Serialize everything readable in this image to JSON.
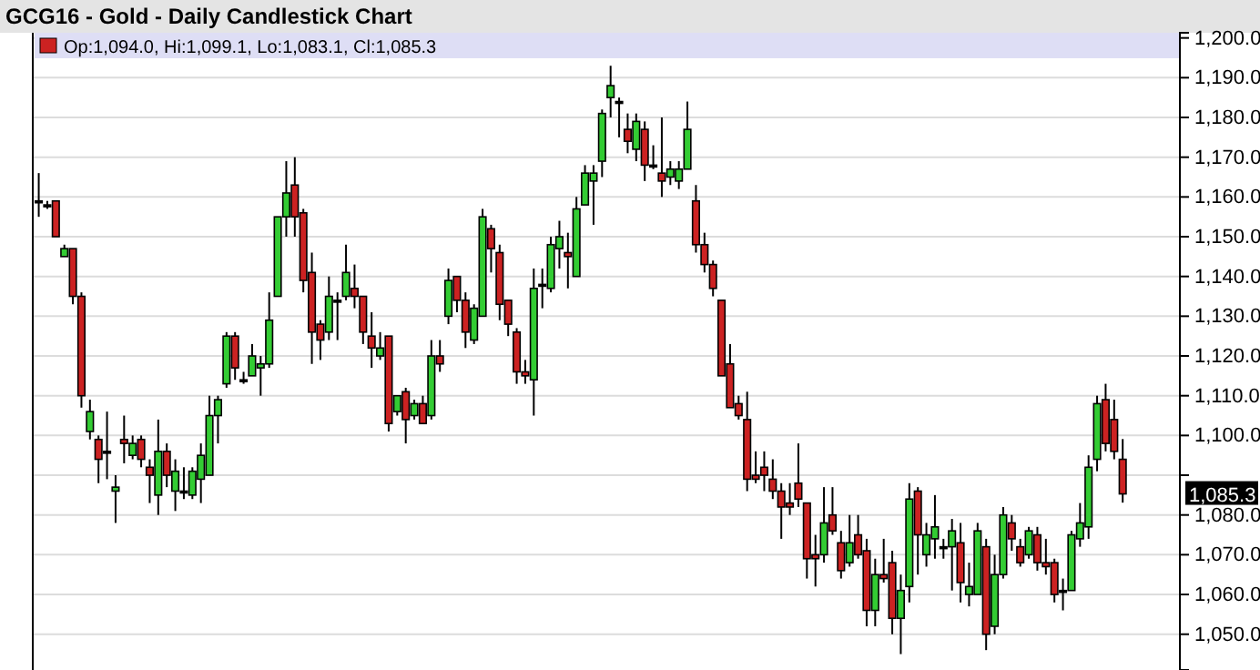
{
  "chart_data": {
    "type": "candlestick",
    "title": "GCG16 - Gold - Daily Candlestick Chart",
    "annotations": [
      "Op:1,094.0, Hi:1,099.1, Lo:1,083.1, Cl:1,085.3",
      "1,085.3"
    ],
    "categories": [
      null,
      null,
      null,
      null,
      null,
      null,
      null,
      null,
      null,
      null,
      null,
      null,
      null,
      null,
      null,
      null,
      null,
      null,
      null,
      null,
      null,
      null,
      null,
      null,
      null,
      null,
      null,
      null,
      null,
      null,
      null,
      null,
      null,
      null,
      null,
      null,
      null,
      null,
      null,
      null,
      null,
      null,
      null,
      null,
      null,
      null,
      null,
      null,
      null,
      null,
      null,
      null,
      null,
      null,
      null,
      null,
      null,
      null,
      null,
      null,
      null,
      null,
      null,
      null,
      null,
      null,
      null,
      null,
      null,
      null,
      null,
      null,
      null,
      null,
      null,
      null,
      null,
      null,
      null,
      null,
      null,
      null,
      null,
      null,
      null,
      null,
      null,
      null,
      null,
      null,
      null,
      null,
      null,
      null,
      null,
      null,
      null,
      null,
      null,
      null,
      null,
      null,
      null,
      null,
      null,
      null,
      null,
      null,
      null,
      null,
      null,
      null,
      null,
      null,
      null,
      null,
      null,
      null,
      null,
      null,
      null,
      null,
      null,
      null,
      null,
      null,
      null,
      null
    ],
    "ohlc": [
      [
        1159,
        1166,
        1155,
        1159
      ],
      [
        1158,
        1159,
        1157,
        1158
      ],
      [
        1159,
        1159,
        1150,
        1150
      ],
      [
        1145,
        1148,
        1145,
        1147
      ],
      [
        1147,
        1147,
        1133,
        1135
      ],
      [
        1135,
        1136,
        1107,
        1110
      ],
      [
        1101,
        1109,
        1099,
        1106
      ],
      [
        1099,
        1100,
        1088,
        1094
      ],
      [
        1096,
        1106,
        1089,
        1096
      ],
      [
        1086,
        1090,
        1078,
        1087
      ],
      [
        1099,
        1105,
        1093,
        1098
      ],
      [
        1095,
        1100,
        1094,
        1098
      ],
      [
        1099,
        1100,
        1092,
        1094
      ],
      [
        1092,
        1094,
        1083,
        1090
      ],
      [
        1085,
        1104,
        1080,
        1096
      ],
      [
        1096,
        1098,
        1087,
        1090
      ],
      [
        1086,
        1094,
        1081,
        1091
      ],
      [
        1086,
        1092,
        1084,
        1086
      ],
      [
        1085,
        1092,
        1084,
        1091
      ],
      [
        1089,
        1098,
        1083,
        1095
      ],
      [
        1090,
        1110,
        1090,
        1105
      ],
      [
        1105,
        1110,
        1098,
        1109
      ],
      [
        1113,
        1126,
        1112,
        1125
      ],
      [
        1125,
        1126,
        1114,
        1117
      ],
      [
        1114,
        1116,
        1113,
        1114
      ],
      [
        1115,
        1123,
        1115,
        1120
      ],
      [
        1117,
        1120,
        1110,
        1118
      ],
      [
        1118,
        1136,
        1117,
        1129
      ],
      [
        1135,
        1155,
        1135,
        1155
      ],
      [
        1155,
        1169,
        1150,
        1161
      ],
      [
        1163,
        1170,
        1150,
        1155
      ],
      [
        1156,
        1157,
        1136,
        1139
      ],
      [
        1141,
        1146,
        1118,
        1126
      ],
      [
        1128,
        1129,
        1119,
        1124
      ],
      [
        1126,
        1140,
        1124,
        1135
      ],
      [
        1134,
        1136,
        1124,
        1134
      ],
      [
        1135,
        1148,
        1134,
        1141
      ],
      [
        1137,
        1143,
        1132,
        1135
      ],
      [
        1135,
        1135,
        1123,
        1126
      ],
      [
        1125,
        1131,
        1117,
        1122
      ],
      [
        1120,
        1126,
        1119,
        1122
      ],
      [
        1125,
        1125,
        1101,
        1103
      ],
      [
        1106,
        1110,
        1105,
        1110
      ],
      [
        1111,
        1112,
        1098,
        1104
      ],
      [
        1105,
        1109,
        1104,
        1108
      ],
      [
        1108,
        1110,
        1103,
        1103
      ],
      [
        1105,
        1124,
        1104,
        1120
      ],
      [
        1120,
        1124,
        1116,
        1118
      ],
      [
        1130,
        1142,
        1128,
        1139
      ],
      [
        1140,
        1140,
        1131,
        1134
      ],
      [
        1134,
        1136,
        1122,
        1126
      ],
      [
        1124,
        1133,
        1123,
        1132
      ],
      [
        1130,
        1157,
        1130,
        1155
      ],
      [
        1152,
        1153,
        1141,
        1147
      ],
      [
        1146,
        1148,
        1129,
        1133
      ],
      [
        1134,
        1134,
        1125,
        1128
      ],
      [
        1126,
        1127,
        1113,
        1116
      ],
      [
        1116,
        1119,
        1113,
        1115
      ],
      [
        1114,
        1142,
        1105,
        1137
      ],
      [
        1138,
        1142,
        1132,
        1138
      ],
      [
        1137,
        1150,
        1136,
        1148
      ],
      [
        1147,
        1154,
        1142,
        1150
      ],
      [
        1146,
        1151,
        1137,
        1145
      ],
      [
        1140,
        1160,
        1140,
        1157
      ],
      [
        1158,
        1168,
        1158,
        1166
      ],
      [
        1164,
        1168,
        1153,
        1166
      ],
      [
        1169,
        1182,
        1165,
        1181
      ],
      [
        1185,
        1193,
        1180,
        1188
      ],
      [
        1184,
        1185,
        1175,
        1184
      ],
      [
        1177,
        1181,
        1171,
        1174
      ],
      [
        1172,
        1181,
        1169,
        1179
      ],
      [
        1177,
        1179,
        1164,
        1168
      ],
      [
        1168,
        1173,
        1167,
        1168
      ],
      [
        1166,
        1180,
        1160,
        1164
      ],
      [
        1165,
        1169,
        1163,
        1167
      ],
      [
        1164,
        1169,
        1162,
        1167
      ],
      [
        1167,
        1184,
        1167,
        1177
      ],
      [
        1159,
        1163,
        1146,
        1148
      ],
      [
        1148,
        1151,
        1141,
        1143
      ],
      [
        1143,
        1144,
        1135,
        1137
      ],
      [
        1134,
        1134,
        1115,
        1115
      ],
      [
        1118,
        1123,
        1107,
        1107
      ],
      [
        1108,
        1110,
        1104,
        1105
      ],
      [
        1104,
        1111,
        1086,
        1089
      ],
      [
        1090,
        1096,
        1088,
        1089
      ],
      [
        1092,
        1096,
        1086,
        1090
      ],
      [
        1089,
        1094,
        1084,
        1086
      ],
      [
        1086,
        1088,
        1074,
        1082
      ],
      [
        1083,
        1088,
        1080,
        1082
      ],
      [
        1088,
        1098,
        1082,
        1084
      ],
      [
        1083,
        1083,
        1064,
        1069
      ],
      [
        1070,
        1075,
        1062,
        1069
      ],
      [
        1070,
        1087,
        1068,
        1078
      ],
      [
        1080,
        1087,
        1075,
        1076
      ],
      [
        1073,
        1076,
        1064,
        1066
      ],
      [
        1068,
        1080,
        1067,
        1073
      ],
      [
        1075,
        1080,
        1069,
        1070
      ],
      [
        1071,
        1074,
        1052,
        1056
      ],
      [
        1056,
        1069,
        1052,
        1065
      ],
      [
        1065,
        1074,
        1063,
        1064
      ],
      [
        1068,
        1071,
        1050,
        1054
      ],
      [
        1054,
        1065,
        1045,
        1061
      ],
      [
        1062,
        1088,
        1058,
        1084
      ],
      [
        1086,
        1087,
        1065,
        1075
      ],
      [
        1070,
        1078,
        1067,
        1075
      ],
      [
        1074,
        1085,
        1069,
        1077
      ],
      [
        1072,
        1074,
        1069,
        1072
      ],
      [
        1072,
        1079,
        1061,
        1076
      ],
      [
        1073,
        1078,
        1058,
        1063
      ],
      [
        1060,
        1068,
        1057,
        1062
      ],
      [
        1060,
        1078,
        1060,
        1076
      ],
      [
        1072,
        1074,
        1046,
        1050
      ],
      [
        1052,
        1070,
        1050,
        1065
      ],
      [
        1065,
        1082,
        1064,
        1080
      ],
      [
        1078,
        1080,
        1071,
        1074
      ],
      [
        1072,
        1074,
        1067,
        1068
      ],
      [
        1070,
        1077,
        1069,
        1076
      ],
      [
        1075,
        1077,
        1066,
        1068
      ],
      [
        1068,
        1074,
        1065,
        1067
      ],
      [
        1068,
        1069,
        1058,
        1060
      ],
      [
        1061,
        1064,
        1056,
        1061
      ],
      [
        1061,
        1076,
        1061,
        1075
      ],
      [
        1074,
        1083,
        1072,
        1078
      ],
      [
        1077,
        1095,
        1074,
        1092
      ],
      [
        1094,
        1110,
        1091,
        1108
      ],
      [
        1109,
        1113,
        1096,
        1098
      ],
      [
        1104,
        1109,
        1094,
        1096
      ],
      [
        1094.0,
        1099.1,
        1083.1,
        1085.3
      ]
    ],
    "colors": [
      "#000000",
      "#000000",
      "#cc2222",
      "#33cc33",
      "#cc2222",
      "#cc2222",
      "#33cc33",
      "#cc2222",
      "#000000",
      "#33cc33",
      "#cc2222",
      "#33cc33",
      "#cc2222",
      "#cc2222",
      "#33cc33",
      "#cc2222",
      "#33cc33",
      "#000000",
      "#33cc33",
      "#33cc33",
      "#33cc33",
      "#33cc33",
      "#33cc33",
      "#cc2222",
      "#000000",
      "#33cc33",
      "#33cc33",
      "#33cc33",
      "#33cc33",
      "#33cc33",
      "#cc2222",
      "#cc2222",
      "#cc2222",
      "#cc2222",
      "#33cc33",
      "#000000",
      "#33cc33",
      "#cc2222",
      "#cc2222",
      "#cc2222",
      "#33cc33",
      "#cc2222",
      "#33cc33",
      "#cc2222",
      "#33cc33",
      "#cc2222",
      "#33cc33",
      "#cc2222",
      "#33cc33",
      "#cc2222",
      "#cc2222",
      "#33cc33",
      "#33cc33",
      "#cc2222",
      "#cc2222",
      "#cc2222",
      "#cc2222",
      "#cc2222",
      "#33cc33",
      "#000000",
      "#33cc33",
      "#33cc33",
      "#cc2222",
      "#33cc33",
      "#33cc33",
      "#33cc33",
      "#33cc33",
      "#33cc33",
      "#000000",
      "#cc2222",
      "#33cc33",
      "#cc2222",
      "#000000",
      "#cc2222",
      "#33cc33",
      "#33cc33",
      "#33cc33",
      "#cc2222",
      "#cc2222",
      "#cc2222",
      "#cc2222",
      "#cc2222",
      "#cc2222",
      "#cc2222",
      "#cc2222",
      "#cc2222",
      "#cc2222",
      "#cc2222",
      "#cc2222",
      "#cc2222",
      "#cc2222",
      "#cc2222",
      "#33cc33",
      "#cc2222",
      "#cc2222",
      "#33cc33",
      "#cc2222",
      "#cc2222",
      "#33cc33",
      "#cc2222",
      "#cc2222",
      "#33cc33",
      "#33cc33",
      "#cc2222",
      "#33cc33",
      "#33cc33",
      "#000000",
      "#33cc33",
      "#cc2222",
      "#33cc33",
      "#33cc33",
      "#cc2222",
      "#33cc33",
      "#33cc33",
      "#cc2222",
      "#cc2222",
      "#33cc33",
      "#cc2222",
      "#cc2222",
      "#cc2222",
      "#000000",
      "#33cc33",
      "#33cc33",
      "#33cc33",
      "#33cc33",
      "#cc2222",
      "#cc2222",
      "#cc2222"
    ],
    "ylim": [
      1041,
      1201.3
    ],
    "yticks": [
      {
        "value": 1050,
        "label": "1,050.0"
      },
      {
        "value": 1060,
        "label": "1,060.0"
      },
      {
        "value": 1070,
        "label": "1,070.0"
      },
      {
        "value": 1080,
        "label": "1,080.0"
      },
      {
        "value": 1090,
        "label": null
      },
      {
        "value": 1100,
        "label": "1,100.0"
      },
      {
        "value": 1110,
        "label": "1,110.0"
      },
      {
        "value": 1120,
        "label": "1,120.0"
      },
      {
        "value": 1130,
        "label": "1,130.0"
      },
      {
        "value": 1140,
        "label": "1,140.0"
      },
      {
        "value": 1150,
        "label": "1,150.0"
      },
      {
        "value": 1160,
        "label": "1,160.0"
      },
      {
        "value": 1170,
        "label": "1,170.0"
      },
      {
        "value": 1180,
        "label": "1,180.0"
      },
      {
        "value": 1190,
        "label": "1,190.0"
      },
      {
        "value": 1200,
        "label": "1,200.0"
      }
    ],
    "grid": "y"
  }
}
